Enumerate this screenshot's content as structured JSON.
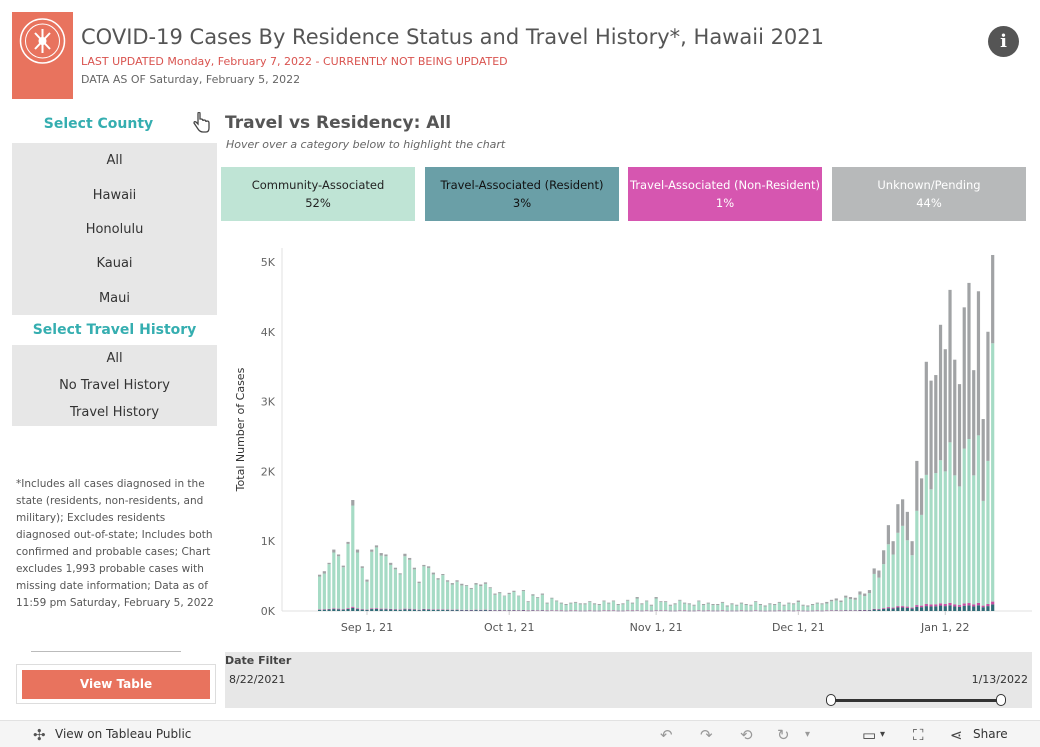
{
  "header": {
    "title": "COVID-19 Cases By Residence Status and Travel History*, Hawaii 2021",
    "last_updated": "LAST UPDATED Monday, February 7, 2022  - CURRENTLY NOT BEING UPDATED",
    "data_as_of": "DATA AS OF Saturday, February 5, 2022",
    "info_icon_text": "i"
  },
  "county_filter": {
    "title": "Select County",
    "options": [
      "All",
      "Hawaii",
      "Honolulu",
      "Kauai",
      "Maui"
    ],
    "selected": "All"
  },
  "travel_filter": {
    "title": "Select Travel History",
    "options": [
      "All",
      "No Travel History",
      "Travel History"
    ],
    "selected": "All"
  },
  "footnote": "*Includes all cases diagnosed in the state (residents, non-residents, and military); Excludes residents diagnosed out-of-state; Includes both confirmed and probable cases; Chart excludes 1,993 probable cases with missing date information; Data as of 11:59 pm Saturday, February 5, 2022",
  "view_table_label": "View Table",
  "chart_header": {
    "title": "Travel vs Residency: All",
    "subtitle": "Hover over a category below to highlight the chart"
  },
  "categories": [
    {
      "label": "Community-Associated",
      "pct": "52%",
      "bg": "#bfe4d5",
      "fg": "#222222"
    },
    {
      "label": "Travel-Associated (Resident)",
      "pct": "3%",
      "bg": "#6a9fa7",
      "fg": "#111111"
    },
    {
      "label": "Travel-Associated (Non-Resident)",
      "pct": "1%",
      "bg": "#d656b0",
      "fg": "#ffffff"
    },
    {
      "label": "Unknown/Pending",
      "pct": "44%",
      "bg": "#b7b9ba",
      "fg": "#ffffff"
    }
  ],
  "colors": {
    "community": "#a6dbc5",
    "resident": "#2f6b76",
    "nonresident": "#c64ea1",
    "unknown": "#a1a3a5",
    "accent": "#35aeb0",
    "logo": "#e8735e"
  },
  "chart_data": {
    "type": "bar",
    "stacked": true,
    "ylabel": "Total Number of Cases",
    "ylim": [
      0,
      5200
    ],
    "yticks": [
      0,
      1000,
      2000,
      3000,
      4000,
      5000
    ],
    "ytick_labels": [
      "0K",
      "1K",
      "2K",
      "3K",
      "4K",
      "5K"
    ],
    "x_start": "8/22/2021",
    "x_end": "1/13/2022",
    "xtick_labels": [
      "Sep 1, 21",
      "Oct 1, 21",
      "Nov 1, 21",
      "Dec 1, 21",
      "Jan 1, 22"
    ],
    "xtick_dates": [
      "2021-09-01",
      "2021-10-01",
      "2021-11-01",
      "2021-12-01",
      "2022-01-01"
    ],
    "series_names": [
      "Travel-Associated (Resident)",
      "Travel-Associated (Non-Resident)",
      "Community-Associated",
      "Unknown/Pending"
    ],
    "totals": [
      520,
      570,
      690,
      880,
      810,
      650,
      990,
      1590,
      880,
      640,
      450,
      880,
      940,
      830,
      810,
      690,
      620,
      540,
      820,
      760,
      620,
      420,
      660,
      640,
      550,
      470,
      530,
      440,
      400,
      440,
      390,
      370,
      330,
      400,
      380,
      410,
      340,
      250,
      270,
      220,
      260,
      290,
      220,
      300,
      140,
      240,
      200,
      250,
      120,
      190,
      150,
      120,
      100,
      120,
      130,
      110,
      110,
      140,
      110,
      100,
      150,
      120,
      150,
      100,
      110,
      160,
      120,
      200,
      110,
      150,
      90,
      200,
      140,
      140,
      90,
      110,
      160,
      120,
      110,
      90,
      150,
      100,
      120,
      100,
      100,
      130,
      80,
      110,
      90,
      120,
      100,
      90,
      140,
      100,
      80,
      110,
      100,
      130,
      90,
      120,
      110,
      150,
      90,
      80,
      100,
      120,
      110,
      130,
      160,
      180,
      150,
      220,
      200,
      190,
      280,
      250,
      300,
      610,
      580,
      870,
      1230,
      1000,
      1530,
      1600,
      1420,
      1000,
      2150,
      1900,
      3570,
      3300,
      3380,
      4100,
      3750,
      4600,
      3600,
      3250,
      4350,
      4700,
      3450,
      4580,
      2750,
      4000,
      5100
    ],
    "community": [
      470,
      510,
      640,
      800,
      750,
      600,
      920,
      1450,
      800,
      590,
      400,
      810,
      870,
      760,
      750,
      630,
      570,
      500,
      750,
      700,
      570,
      380,
      610,
      590,
      500,
      430,
      490,
      400,
      360,
      400,
      350,
      340,
      300,
      360,
      340,
      370,
      310,
      220,
      240,
      200,
      230,
      260,
      200,
      270,
      120,
      210,
      180,
      220,
      100,
      170,
      130,
      100,
      80,
      100,
      110,
      90,
      90,
      120,
      90,
      80,
      130,
      100,
      130,
      80,
      90,
      140,
      100,
      170,
      90,
      130,
      70,
      170,
      120,
      120,
      70,
      90,
      140,
      100,
      90,
      70,
      130,
      80,
      100,
      80,
      80,
      110,
      60,
      90,
      70,
      100,
      80,
      70,
      120,
      80,
      60,
      90,
      80,
      110,
      70,
      100,
      90,
      120,
      70,
      60,
      80,
      100,
      90,
      100,
      130,
      140,
      120,
      180,
      160,
      150,
      220,
      200,
      240,
      500,
      450,
      630,
      900,
      760,
      1050,
      1150,
      950,
      750,
      1350,
      1300,
      1850,
      1650,
      1880,
      2050,
      1900,
      2300,
      1850,
      1700,
      2220,
      2350,
      1850,
      2400,
      1500,
      2050,
      3700
    ],
    "resident": [
      18,
      20,
      22,
      28,
      25,
      20,
      30,
      45,
      28,
      20,
      15,
      28,
      30,
      25,
      25,
      22,
      20,
      18,
      25,
      24,
      20,
      14,
      22,
      20,
      18,
      16,
      18,
      15,
      14,
      15,
      13,
      13,
      12,
      14,
      13,
      14,
      12,
      9,
      10,
      8,
      9,
      10,
      8,
      11,
      5,
      9,
      7,
      9,
      5,
      7,
      6,
      5,
      4,
      5,
      5,
      4,
      4,
      5,
      4,
      4,
      6,
      5,
      6,
      4,
      4,
      6,
      5,
      7,
      4,
      6,
      4,
      7,
      6,
      6,
      4,
      4,
      6,
      5,
      4,
      4,
      6,
      4,
      5,
      4,
      4,
      5,
      3,
      4,
      4,
      5,
      4,
      4,
      6,
      4,
      3,
      4,
      4,
      5,
      4,
      5,
      4,
      6,
      4,
      3,
      4,
      5,
      4,
      6,
      7,
      8,
      6,
      9,
      8,
      8,
      11,
      10,
      12,
      22,
      20,
      30,
      40,
      35,
      50,
      50,
      45,
      35,
      60,
      55,
      70,
      65,
      68,
      78,
      70,
      82,
      65,
      60,
      75,
      80,
      65,
      82,
      55,
      70,
      95
    ],
    "nonresident": [
      6,
      6,
      8,
      10,
      9,
      7,
      11,
      16,
      10,
      7,
      5,
      10,
      11,
      9,
      9,
      8,
      7,
      6,
      9,
      9,
      7,
      5,
      8,
      7,
      6,
      5,
      6,
      5,
      5,
      5,
      4,
      4,
      4,
      5,
      4,
      5,
      4,
      3,
      3,
      3,
      3,
      3,
      3,
      4,
      2,
      3,
      2,
      3,
      2,
      2,
      2,
      2,
      1,
      2,
      2,
      1,
      1,
      2,
      1,
      1,
      2,
      2,
      2,
      1,
      1,
      2,
      2,
      2,
      1,
      2,
      1,
      2,
      2,
      2,
      1,
      1,
      2,
      2,
      1,
      1,
      2,
      1,
      2,
      1,
      1,
      2,
      1,
      1,
      1,
      2,
      1,
      1,
      2,
      1,
      1,
      1,
      1,
      2,
      1,
      2,
      1,
      2,
      1,
      1,
      1,
      2,
      1,
      2,
      2,
      3,
      2,
      3,
      3,
      3,
      4,
      4,
      5,
      9,
      8,
      12,
      16,
      14,
      20,
      20,
      18,
      14,
      25,
      22,
      30,
      28,
      28,
      32,
      30,
      34,
      28,
      25,
      32,
      34,
      28,
      34,
      22,
      30,
      40
    ]
  },
  "date_filter": {
    "title": "Date Filter",
    "start": "8/22/2021",
    "end": "1/13/2022",
    "range_start_fraction": 0.0,
    "range_end_fraction": 1.0
  },
  "toolbar": {
    "view_on": "View on Tableau Public",
    "share": "Share"
  }
}
